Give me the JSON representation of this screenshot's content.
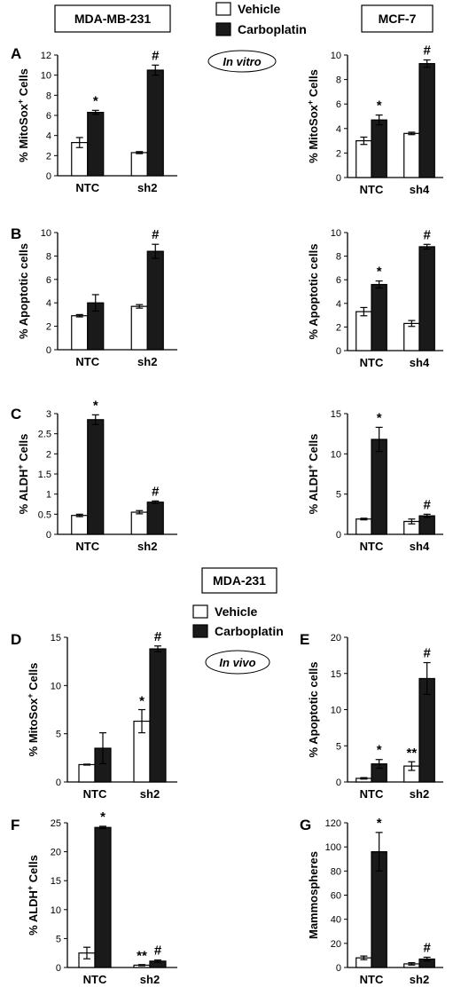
{
  "labels": {
    "cell_line_left": "MDA-MB-231",
    "cell_line_right": "MCF-7",
    "cell_line_invivo": "MDA-231",
    "condition_top": "In vitro",
    "condition_bottom": "In vivo"
  },
  "legend_top": {
    "vehicle": "Vehicle",
    "carboplatin": "Carboplatin"
  },
  "legend_bottom": {
    "vehicle": "Vehicle",
    "carboplatin": "Carboplatin"
  },
  "colors": {
    "vehicle": "#ffffff",
    "carboplatin": "#1a1a1a"
  },
  "chart_data": [
    {
      "id": "A-left",
      "panel": "A",
      "type": "bar",
      "ylabel": "% MitoSox",
      "ylabel_sup": "+",
      "ylabel_after": " Cells",
      "categories": [
        "NTC",
        "sh2"
      ],
      "ylim": [
        0,
        12
      ],
      "yticks": [
        0,
        2,
        4,
        6,
        8,
        10,
        12
      ],
      "series": [
        {
          "name": "Vehicle",
          "values": [
            3.3,
            2.3
          ],
          "errors": [
            0.5,
            0.1
          ]
        },
        {
          "name": "Carboplatin",
          "values": [
            6.3,
            10.5
          ],
          "errors": [
            0.2,
            0.5
          ]
        }
      ],
      "annotations": [
        {
          "category": 0,
          "text": "*"
        },
        {
          "category": 1,
          "text": "#"
        }
      ]
    },
    {
      "id": "A-right",
      "panel": "",
      "type": "bar",
      "ylabel": "% MitoSox",
      "ylabel_sup": "+",
      "ylabel_after": " Cells",
      "categories": [
        "NTC",
        "sh4"
      ],
      "ylim": [
        0,
        10
      ],
      "yticks": [
        0,
        2,
        4,
        6,
        8,
        10
      ],
      "series": [
        {
          "name": "Vehicle",
          "values": [
            3.0,
            3.6
          ],
          "errors": [
            0.3,
            0.1
          ]
        },
        {
          "name": "Carboplatin",
          "values": [
            4.7,
            9.3
          ],
          "errors": [
            0.4,
            0.3
          ]
        }
      ],
      "annotations": [
        {
          "category": 0,
          "text": "*"
        },
        {
          "category": 1,
          "text": "#"
        }
      ]
    },
    {
      "id": "B-left",
      "panel": "B",
      "type": "bar",
      "ylabel": "% Apoptotic cells",
      "ylabel_sup": "",
      "ylabel_after": "",
      "categories": [
        "NTC",
        "sh2"
      ],
      "ylim": [
        0,
        10
      ],
      "yticks": [
        0,
        2,
        4,
        6,
        8,
        10
      ],
      "series": [
        {
          "name": "Vehicle",
          "values": [
            2.9,
            3.7
          ],
          "errors": [
            0.1,
            0.15
          ]
        },
        {
          "name": "Carboplatin",
          "values": [
            4.0,
            8.4
          ],
          "errors": [
            0.7,
            0.6
          ]
        }
      ],
      "annotations": [
        {
          "category": 1,
          "text": "#"
        }
      ]
    },
    {
      "id": "B-right",
      "panel": "",
      "type": "bar",
      "ylabel": "% Apoptotic cells",
      "ylabel_sup": "",
      "ylabel_after": "",
      "categories": [
        "NTC",
        "sh4"
      ],
      "ylim": [
        0,
        10
      ],
      "yticks": [
        0,
        2,
        4,
        6,
        8,
        10
      ],
      "series": [
        {
          "name": "Vehicle",
          "values": [
            3.3,
            2.3
          ],
          "errors": [
            0.35,
            0.25
          ]
        },
        {
          "name": "Carboplatin",
          "values": [
            5.6,
            8.8
          ],
          "errors": [
            0.3,
            0.2
          ]
        }
      ],
      "annotations": [
        {
          "category": 0,
          "text": "*"
        },
        {
          "category": 1,
          "text": "#"
        }
      ]
    },
    {
      "id": "C-left",
      "panel": "C",
      "type": "bar",
      "ylabel": "% ALDH",
      "ylabel_sup": "+",
      "ylabel_after": " Cells",
      "categories": [
        "NTC",
        "sh2"
      ],
      "ylim": [
        0,
        3
      ],
      "yticks": [
        0,
        0.5,
        1,
        1.5,
        2,
        2.5,
        3
      ],
      "series": [
        {
          "name": "Vehicle",
          "values": [
            0.47,
            0.55
          ],
          "errors": [
            0.03,
            0.04
          ]
        },
        {
          "name": "Carboplatin",
          "values": [
            2.85,
            0.8
          ],
          "errors": [
            0.12,
            0.03
          ]
        }
      ],
      "annotations": [
        {
          "category": 0,
          "text": "*"
        },
        {
          "category": 1,
          "text": "#"
        }
      ]
    },
    {
      "id": "C-right",
      "panel": "",
      "type": "bar",
      "ylabel": "% ALDH",
      "ylabel_sup": "+",
      "ylabel_after": " Cells",
      "categories": [
        "NTC",
        "sh4"
      ],
      "ylim": [
        0,
        15
      ],
      "yticks": [
        0,
        5,
        10,
        15
      ],
      "series": [
        {
          "name": "Vehicle",
          "values": [
            1.9,
            1.6
          ],
          "errors": [
            0.1,
            0.3
          ]
        },
        {
          "name": "Carboplatin",
          "values": [
            11.8,
            2.3
          ],
          "errors": [
            1.5,
            0.2
          ]
        }
      ],
      "annotations": [
        {
          "category": 0,
          "text": "*"
        },
        {
          "category": 1,
          "text": "#"
        }
      ]
    },
    {
      "id": "D",
      "panel": "D",
      "type": "bar",
      "ylabel": "% MitoSox",
      "ylabel_sup": "+",
      "ylabel_after": " Cells",
      "categories": [
        "NTC",
        "sh2"
      ],
      "ylim": [
        0,
        15
      ],
      "yticks": [
        0,
        5,
        10,
        15
      ],
      "series": [
        {
          "name": "Vehicle",
          "values": [
            1.8,
            6.3
          ],
          "errors": [
            0.05,
            1.2
          ]
        },
        {
          "name": "Carboplatin",
          "values": [
            3.5,
            13.8
          ],
          "errors": [
            1.6,
            0.3
          ]
        }
      ],
      "annotations": [
        {
          "category": 1,
          "series": 0,
          "text": "*"
        },
        {
          "category": 1,
          "text": "#"
        }
      ]
    },
    {
      "id": "E",
      "panel": "E",
      "type": "bar",
      "ylabel": "% Apoptotic cells",
      "ylabel_sup": "",
      "ylabel_after": "",
      "categories": [
        "NTC",
        "sh2"
      ],
      "ylim": [
        0,
        20
      ],
      "yticks": [
        0,
        5,
        10,
        15,
        20
      ],
      "series": [
        {
          "name": "Vehicle",
          "values": [
            0.5,
            2.2
          ],
          "errors": [
            0.1,
            0.6
          ]
        },
        {
          "name": "Carboplatin",
          "values": [
            2.5,
            14.3
          ],
          "errors": [
            0.6,
            2.2
          ]
        }
      ],
      "annotations": [
        {
          "category": 0,
          "text": "*"
        },
        {
          "category": 1,
          "series": 0,
          "text": "**"
        },
        {
          "category": 1,
          "text": "#"
        }
      ]
    },
    {
      "id": "F",
      "panel": "F",
      "type": "bar",
      "ylabel": "% ALDH",
      "ylabel_sup": "+",
      "ylabel_after": " Cells",
      "categories": [
        "NTC",
        "sh2"
      ],
      "ylim": [
        0,
        25
      ],
      "yticks": [
        0,
        5,
        10,
        15,
        20,
        25
      ],
      "series": [
        {
          "name": "Vehicle",
          "values": [
            2.5,
            0.4
          ],
          "errors": [
            1.0,
            0.1
          ]
        },
        {
          "name": "Carboplatin",
          "values": [
            24.2,
            1.1
          ],
          "errors": [
            0.2,
            0.2
          ]
        }
      ],
      "annotations": [
        {
          "category": 0,
          "text": "*"
        },
        {
          "category": 1,
          "series": 0,
          "text": "**"
        },
        {
          "category": 1,
          "text": "#"
        }
      ]
    },
    {
      "id": "G",
      "panel": "G",
      "type": "bar",
      "ylabel": "Mammospheres",
      "ylabel_sup": "",
      "ylabel_after": "",
      "categories": [
        "NTC",
        "sh2"
      ],
      "ylim": [
        0,
        120
      ],
      "yticks": [
        0,
        20,
        40,
        60,
        80,
        100,
        120
      ],
      "series": [
        {
          "name": "Vehicle",
          "values": [
            8,
            3
          ],
          "errors": [
            1.5,
            1
          ]
        },
        {
          "name": "Carboplatin",
          "values": [
            96,
            7
          ],
          "errors": [
            16,
            1.5
          ]
        }
      ],
      "annotations": [
        {
          "category": 0,
          "text": "*"
        },
        {
          "category": 1,
          "text": "#"
        }
      ]
    }
  ]
}
